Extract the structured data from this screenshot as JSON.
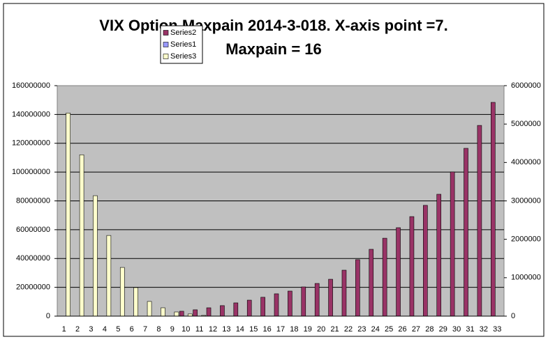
{
  "chart_data": {
    "type": "bar",
    "title": [
      "VIX Option Maxpain 2014-3-018. X-axis point =7.",
      "Maxpain = 16"
    ],
    "categories": [
      1,
      2,
      3,
      4,
      5,
      6,
      7,
      8,
      9,
      10,
      11,
      12,
      13,
      14,
      15,
      16,
      17,
      18,
      19,
      20,
      21,
      22,
      23,
      24,
      25,
      26,
      27,
      28,
      29,
      30,
      31,
      32,
      33
    ],
    "series": [
      {
        "name": "Series2",
        "color": "#993366",
        "values": [
          0,
          0,
          0,
          0,
          0,
          0,
          0,
          0,
          0,
          3400000,
          4400000,
          5800000,
          7300000,
          9200000,
          11100000,
          13100000,
          15500000,
          17400000,
          20300000,
          22700000,
          25600000,
          31900000,
          39200000,
          46400000,
          54100000,
          61400000,
          69100000,
          76900000,
          84600000,
          100100000,
          116500000,
          132400000,
          148400000
        ]
      },
      {
        "name": "Series1",
        "color": "#9999ff",
        "axis": "y2",
        "values": [
          0,
          0,
          0,
          0,
          0,
          0,
          0,
          0,
          0,
          0,
          0,
          0,
          0,
          0,
          0,
          0,
          0,
          0,
          0,
          0,
          0,
          0,
          0,
          0,
          0,
          0,
          0,
          0,
          0,
          0,
          0,
          0,
          0
        ]
      },
      {
        "name": "Series3",
        "color": "#ffffcc",
        "values": [
          141000000,
          112000000,
          83600000,
          56000000,
          33800000,
          19800000,
          10200000,
          5800000,
          2900000,
          1500000,
          500000,
          0,
          0,
          0,
          0,
          0,
          0,
          0,
          0,
          0,
          0,
          0,
          0,
          0,
          0,
          0,
          0,
          0,
          0,
          0,
          0,
          0,
          0
        ]
      }
    ],
    "ylim": [
      0,
      160000000
    ],
    "yticks": [
      0,
      20000000,
      40000000,
      60000000,
      80000000,
      100000000,
      120000000,
      140000000,
      160000000
    ],
    "y2lim": [
      0,
      6000000
    ],
    "y2ticks": [
      0,
      1000000,
      2000000,
      3000000,
      4000000,
      5000000,
      6000000
    ],
    "grid": true
  }
}
